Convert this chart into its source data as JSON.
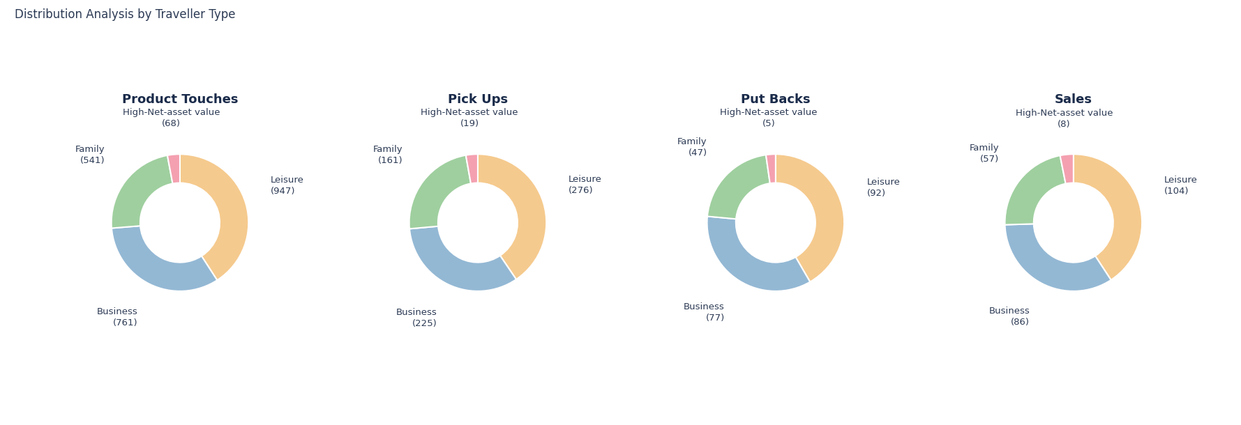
{
  "title": "Distribution Analysis by Traveller Type",
  "title_fontsize": 12,
  "title_color": "#2d3b55",
  "charts": [
    {
      "subtitle": "Product Touches",
      "values": [
        947,
        761,
        541,
        68
      ],
      "labels": [
        "Leisure\n(947)",
        "Business\n(761)",
        "Family\n(541)",
        "High-Net-asset value\n(68)"
      ]
    },
    {
      "subtitle": "Pick Ups",
      "values": [
        276,
        225,
        161,
        19
      ],
      "labels": [
        "Leisure\n(276)",
        "Business\n(225)",
        "Family\n(161)",
        "High-Net-asset value\n(19)"
      ]
    },
    {
      "subtitle": "Put Backs",
      "values": [
        92,
        77,
        47,
        5
      ],
      "labels": [
        "Leisure\n(92)",
        "Business\n(77)",
        "Family\n(47)",
        "High-Net-asset value\n(5)"
      ]
    },
    {
      "subtitle": "Sales",
      "values": [
        104,
        86,
        57,
        8
      ],
      "labels": [
        "Leisure\n(104)",
        "Business\n(86)",
        "Family\n(57)",
        "High-Net-asset value\n(8)"
      ]
    }
  ],
  "colors": [
    "#f5ca8e",
    "#93b8d4",
    "#9fcf9f",
    "#f4a0b0"
  ],
  "subtitle_fontsize": 13,
  "subtitle_color": "#1a2b4a",
  "label_fontsize": 9.5,
  "label_color": "#2d3b55",
  "bg_color": "#ffffff",
  "donut_width": 0.42
}
